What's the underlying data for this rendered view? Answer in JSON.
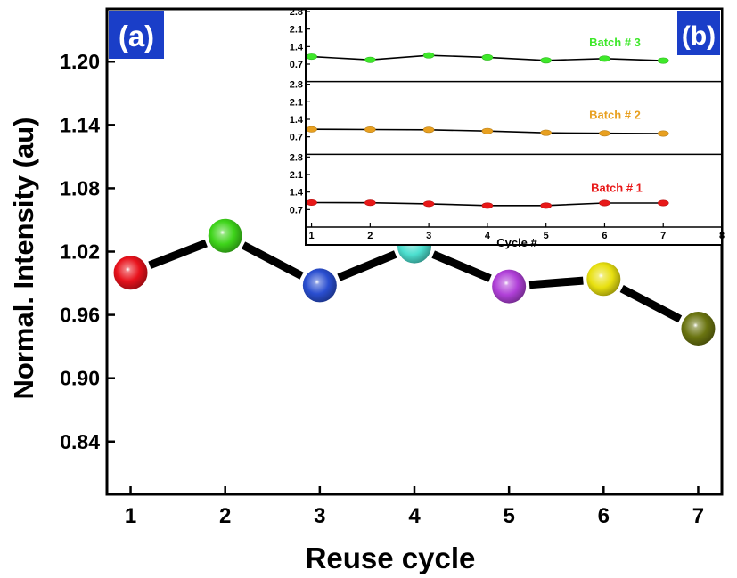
{
  "chart_data": [
    {
      "panel": "(a)",
      "type": "line",
      "xlabel": "Reuse cycle",
      "ylabel": "Normal. Intensity (au)",
      "x": [
        1,
        2,
        3,
        4,
        5,
        6,
        7
      ],
      "values": [
        1.0,
        1.035,
        0.988,
        1.025,
        0.987,
        0.994,
        0.947
      ],
      "point_colors": [
        "#e8121c",
        "#3ed41a",
        "#2a4ed0",
        "#4cdfcf",
        "#b040d8",
        "#e8e010",
        "#6a7410"
      ],
      "line_color": "#000000",
      "xlim": [
        0.75,
        7.25
      ],
      "ylim": [
        0.79,
        1.25
      ],
      "xticks": [
        "1",
        "2",
        "3",
        "4",
        "5",
        "6",
        "7"
      ],
      "yticks": [
        "0.84",
        "0.90",
        "0.96",
        "1.02",
        "1.08",
        "1.14",
        "1.20"
      ],
      "grid": false
    },
    {
      "panel": "(b)",
      "type": "line",
      "xlabel": "Cycle #",
      "xticks": [
        "1",
        "2",
        "3",
        "4",
        "5",
        "6",
        "7",
        "8"
      ],
      "xlim": [
        0.9,
        8.0
      ],
      "ylim": [
        0.0,
        2.8
      ],
      "yticks": [
        "0.7",
        "1.4",
        "2.1",
        "2.8"
      ],
      "series": [
        {
          "name": "Batch # 3",
          "color": "#3ee82a",
          "x": [
            1,
            2,
            3,
            4,
            5,
            6,
            7
          ],
          "values": [
            1.0,
            0.87,
            1.05,
            0.97,
            0.85,
            0.92,
            0.84
          ]
        },
        {
          "name": "Batch # 2",
          "color": "#e8a020",
          "x": [
            1,
            2,
            3,
            4,
            5,
            6,
            7
          ],
          "values": [
            1.0,
            0.99,
            0.98,
            0.93,
            0.86,
            0.84,
            0.83
          ]
        },
        {
          "name": "Batch # 1",
          "color": "#e81818",
          "x": [
            1,
            2,
            3,
            4,
            5,
            6,
            7
          ],
          "values": [
            0.98,
            0.97,
            0.93,
            0.86,
            0.86,
            0.96,
            0.96
          ]
        }
      ],
      "grid": false
    }
  ]
}
